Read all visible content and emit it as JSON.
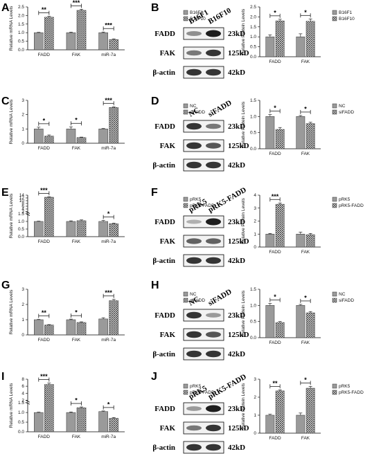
{
  "colors": {
    "bar_a": "#9a9a9a",
    "bar_b_hatch": "#444444",
    "axis": "#000000"
  },
  "panel_labels": [
    "A",
    "B",
    "C",
    "D",
    "E",
    "F",
    "G",
    "H",
    "I",
    "J"
  ],
  "blots": [
    {
      "id": "B",
      "lanes": [
        "B16F1",
        "B16F10"
      ],
      "proteins": [
        "FADD",
        "FAK",
        "β-actin"
      ],
      "sizes": [
        "23kD",
        "125kD",
        "42kD"
      ],
      "band_levels": [
        [
          0.5,
          1.0
        ],
        [
          0.6,
          0.9
        ],
        [
          0.9,
          0.9
        ]
      ]
    },
    {
      "id": "D",
      "lanes": [
        "NC",
        "siFADD"
      ],
      "proteins": [
        "FADD",
        "FAK",
        "β-actin"
      ],
      "sizes": [
        "23kD",
        "125kD",
        "42kD"
      ],
      "band_levels": [
        [
          0.9,
          0.6
        ],
        [
          0.9,
          0.75
        ],
        [
          0.9,
          0.9
        ]
      ]
    },
    {
      "id": "F",
      "lanes": [
        "pRK5",
        "pRK5-FADD"
      ],
      "proteins": [
        "FADD",
        "FAK",
        "β-actin"
      ],
      "sizes": [
        "23kD",
        "125kD",
        "42kD"
      ],
      "band_levels": [
        [
          0.35,
          1.0
        ],
        [
          0.7,
          0.7
        ],
        [
          0.9,
          0.9
        ]
      ]
    },
    {
      "id": "H",
      "lanes": [
        "NC",
        "siFADD"
      ],
      "proteins": [
        "FADD",
        "FAK",
        "β-actin"
      ],
      "sizes": [
        "23kD",
        "125kD",
        "42kD"
      ],
      "band_levels": [
        [
          0.9,
          0.45
        ],
        [
          0.9,
          0.75
        ],
        [
          0.9,
          0.9
        ]
      ]
    },
    {
      "id": "J",
      "lanes": [
        "pRK5",
        "pRK5-FADD"
      ],
      "proteins": [
        "FADD",
        "FAK",
        "β-actin"
      ],
      "sizes": [
        "23kD",
        "125kD",
        "42kD"
      ],
      "band_levels": [
        [
          0.45,
          1.0
        ],
        [
          0.6,
          0.9
        ],
        [
          0.9,
          0.9
        ]
      ]
    }
  ],
  "chart_data": [
    {
      "id": "A",
      "type": "bar",
      "ylabel": "Relative mRNA Levels",
      "categories": [
        "FADD",
        "FAK",
        "miR-7a"
      ],
      "ylim": [
        0,
        2.5
      ],
      "ticks": [
        0,
        0.5,
        1.0,
        1.5,
        2.0,
        2.5
      ],
      "series": [
        {
          "name": "B16F1",
          "values": [
            1.0,
            1.0,
            1.0
          ],
          "errors": [
            0.02,
            0.03,
            0.04
          ]
        },
        {
          "name": "B16F10",
          "values": [
            1.9,
            2.3,
            0.6
          ],
          "errors": [
            0.05,
            0.06,
            0.04
          ]
        }
      ],
      "significance": [
        "**",
        "***",
        "***"
      ]
    },
    {
      "id": "B",
      "type": "bar",
      "ylabel": "Relative Protein Levels",
      "categories": [
        "FADD",
        "FAK"
      ],
      "ylim": [
        0,
        2.5
      ],
      "ticks": [
        0.0,
        0.5,
        1.0,
        1.5,
        2.0,
        2.5
      ],
      "series": [
        {
          "name": "B16F1",
          "values": [
            1.0,
            1.0
          ],
          "errors": [
            0.1,
            0.15
          ]
        },
        {
          "name": "B16F10",
          "values": [
            1.8,
            1.78
          ],
          "errors": [
            0.08,
            0.12
          ]
        }
      ],
      "significance": [
        "*",
        "*"
      ]
    },
    {
      "id": "C",
      "type": "bar",
      "ylabel": "Relative mRNA Levels",
      "categories": [
        "FADD",
        "FAK",
        "miR-7a"
      ],
      "ylim": [
        0,
        3
      ],
      "ticks": [
        0,
        1,
        2,
        3
      ],
      "series": [
        {
          "name": "NC",
          "values": [
            1.0,
            1.0,
            1.0
          ],
          "errors": [
            0.12,
            0.15,
            0.03
          ]
        },
        {
          "name": "siFADD",
          "values": [
            0.5,
            0.4,
            2.5
          ],
          "errors": [
            0.08,
            0.03,
            0.05
          ]
        }
      ],
      "significance": [
        "*",
        "*",
        "***"
      ]
    },
    {
      "id": "D",
      "type": "bar",
      "ylabel": "Relative Protein Levels",
      "categories": [
        "FADD",
        "FAK"
      ],
      "ylim": [
        0,
        1.5
      ],
      "ticks": [
        0.0,
        0.5,
        1.0,
        1.5
      ],
      "series": [
        {
          "name": "NC",
          "values": [
            1.0,
            1.0
          ],
          "errors": [
            0.06,
            0.03
          ]
        },
        {
          "name": "siFADD",
          "values": [
            0.6,
            0.78
          ],
          "errors": [
            0.06,
            0.04
          ]
        }
      ],
      "significance": [
        "*",
        "*"
      ]
    },
    {
      "id": "E",
      "type": "bar",
      "ylabel": "Relative mRNA Levels",
      "categories": [
        "FADD",
        "FAK",
        "miR-7a"
      ],
      "ylim": [
        0,
        14
      ],
      "ticks": [
        0,
        0.5,
        1.0,
        1.5,
        2,
        4,
        6,
        8,
        10,
        12,
        14
      ],
      "series": [
        {
          "name": "pRK5",
          "values": [
            1.0,
            1.0,
            1.0
          ],
          "errors": [
            0.02,
            0.04,
            0.06
          ]
        },
        {
          "name": "pRK5-FADD",
          "values": [
            12.5,
            1.05,
            0.85
          ],
          "errors": [
            0.3,
            0.05,
            0.04
          ]
        }
      ],
      "significance": [
        "***",
        "",
        "*"
      ]
    },
    {
      "id": "F",
      "type": "bar",
      "ylabel": "Relative Protein Levels",
      "categories": [
        "FADD",
        "FAK"
      ],
      "ylim": [
        0,
        4
      ],
      "ticks": [
        0,
        1,
        2,
        3,
        4
      ],
      "series": [
        {
          "name": "pRK5",
          "values": [
            1.0,
            1.0
          ],
          "errors": [
            0.05,
            0.15
          ]
        },
        {
          "name": "pRK5-FADD",
          "values": [
            3.3,
            0.95
          ],
          "errors": [
            0.1,
            0.1
          ]
        }
      ],
      "significance": [
        "***",
        ""
      ]
    },
    {
      "id": "G",
      "type": "bar",
      "ylabel": "Relative mRNA Levels",
      "categories": [
        "FADD",
        "FAK",
        "miR-7a"
      ],
      "ylim": [
        0,
        3
      ],
      "ticks": [
        0,
        1,
        2,
        3
      ],
      "series": [
        {
          "name": "NC",
          "values": [
            1.0,
            1.0,
            1.05
          ],
          "errors": [
            0.02,
            0.04,
            0.08
          ]
        },
        {
          "name": "siFADD",
          "values": [
            0.65,
            0.82,
            2.25
          ],
          "errors": [
            0.03,
            0.04,
            0.08
          ]
        }
      ],
      "significance": [
        "**",
        "*",
        "***"
      ]
    },
    {
      "id": "H",
      "type": "bar",
      "ylabel": "Relative Protein Levels",
      "categories": [
        "FADD",
        "FAK"
      ],
      "ylim": [
        0,
        1.5
      ],
      "ticks": [
        0.0,
        0.5,
        1.0,
        1.5
      ],
      "series": [
        {
          "name": "NC",
          "values": [
            1.0,
            1.0
          ],
          "errors": [
            0.06,
            0.03
          ]
        },
        {
          "name": "siFADD",
          "values": [
            0.47,
            0.77
          ],
          "errors": [
            0.03,
            0.04
          ]
        }
      ],
      "significance": [
        "*",
        "*"
      ]
    },
    {
      "id": "I",
      "type": "bar",
      "ylabel": "Relative mRNA Levels",
      "categories": [
        "FADD",
        "FAK",
        "miR-7a"
      ],
      "ylim": [
        0,
        8
      ],
      "ticks": [
        0,
        0.5,
        1.0,
        1.5,
        2,
        4,
        6,
        8
      ],
      "series": [
        {
          "name": "pRK5",
          "values": [
            1.0,
            1.0,
            1.05
          ],
          "errors": [
            0.02,
            0.03,
            0.03
          ]
        },
        {
          "name": "pRK5-FADD",
          "values": [
            6.5,
            1.25,
            0.7
          ],
          "errors": [
            0.4,
            0.04,
            0.04
          ]
        }
      ],
      "significance": [
        "***",
        "*",
        "*"
      ]
    },
    {
      "id": "J",
      "type": "bar",
      "ylabel": "Relative Protein Levels",
      "categories": [
        "FADD",
        "FAK"
      ],
      "ylim": [
        0,
        3
      ],
      "ticks": [
        0,
        1,
        2,
        3
      ],
      "series": [
        {
          "name": "pRK5",
          "values": [
            1.0,
            1.0
          ],
          "errors": [
            0.05,
            0.12
          ]
        },
        {
          "name": "pRK5-FADD",
          "values": [
            2.35,
            2.5
          ],
          "errors": [
            0.06,
            0.1
          ]
        }
      ],
      "significance": [
        "**",
        "*"
      ]
    }
  ]
}
